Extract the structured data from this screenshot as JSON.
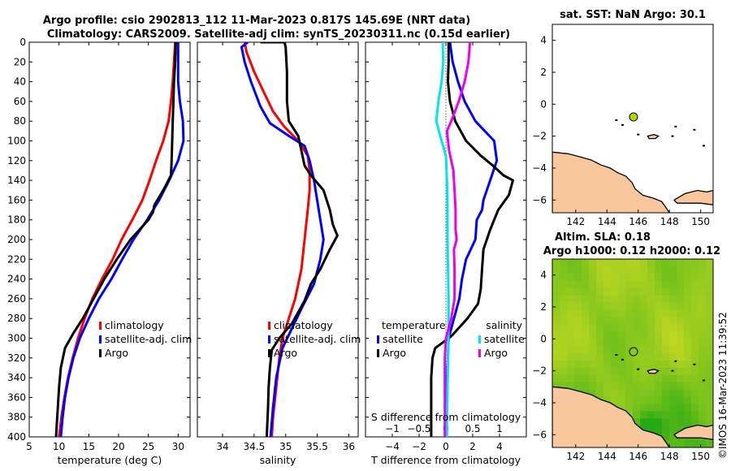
{
  "title_line1": "Argo profile: csio 2902813_112 11-Mar-2023 0.817S 145.69E (NRT data)",
  "title_line2": "Climatology: CARS2009. Satellite-adj clim: synTS_20230311.nc (0.15d earlier)",
  "copyright": "©IMOS 16-Mar-2023 11:39:52",
  "colors": {
    "climatology": "#ff0000",
    "satellite": "#0000ff",
    "argo": "#000000",
    "sal_satellite": "#00e5ee",
    "sal_argo": "#ee00ee",
    "land": "#f9c79d",
    "sst_bg": "#ffffff",
    "float_marker": "#aadd00"
  },
  "chart_data": [
    {
      "type": "line",
      "id": "temperature",
      "xlabel": "temperature (deg C)",
      "xlim": [
        5,
        32
      ],
      "ylim": [
        0,
        400
      ],
      "y_reversed": true,
      "xticks": [
        5,
        10,
        15,
        20,
        25,
        30
      ],
      "yticks": [
        0,
        20,
        40,
        60,
        80,
        100,
        120,
        140,
        160,
        180,
        200,
        220,
        240,
        260,
        280,
        300,
        320,
        340,
        360,
        380,
        400
      ],
      "legend": [
        "climatology",
        "satellite-adj. clim",
        "Argo"
      ],
      "series": [
        {
          "name": "climatology",
          "color": "climatology",
          "points": [
            [
              29.5,
              0
            ],
            [
              29.3,
              20
            ],
            [
              29.1,
              40
            ],
            [
              28.8,
              60
            ],
            [
              28.4,
              80
            ],
            [
              27.5,
              100
            ],
            [
              26.3,
              120
            ],
            [
              25.2,
              140
            ],
            [
              24,
              160
            ],
            [
              22.3,
              180
            ],
            [
              20.5,
              200
            ],
            [
              19,
              220
            ],
            [
              17.2,
              240
            ],
            [
              15.6,
              260
            ],
            [
              14.3,
              280
            ],
            [
              13.2,
              300
            ],
            [
              12.3,
              320
            ],
            [
              11.5,
              340
            ],
            [
              10.9,
              360
            ],
            [
              10.4,
              380
            ],
            [
              10,
              400
            ]
          ]
        },
        {
          "name": "satellite-adj. clim",
          "color": "satellite",
          "points": [
            [
              30,
              0
            ],
            [
              30,
              20
            ],
            [
              30,
              40
            ],
            [
              30.3,
              60
            ],
            [
              30.8,
              80
            ],
            [
              30.9,
              100
            ],
            [
              30,
              120
            ],
            [
              28.5,
              140
            ],
            [
              26.8,
              160
            ],
            [
              24.8,
              180
            ],
            [
              22.5,
              200
            ],
            [
              20.6,
              220
            ],
            [
              18.8,
              240
            ],
            [
              16.7,
              260
            ],
            [
              15,
              280
            ],
            [
              13.5,
              300
            ],
            [
              12.4,
              320
            ],
            [
              11.6,
              340
            ],
            [
              11,
              360
            ],
            [
              10.6,
              380
            ],
            [
              10.3,
              400
            ]
          ]
        },
        {
          "name": "Argo",
          "color": "argo",
          "points": [
            [
              29.6,
              0
            ],
            [
              29.5,
              20
            ],
            [
              29.3,
              40
            ],
            [
              29.2,
              60
            ],
            [
              29.1,
              80
            ],
            [
              29,
              100
            ],
            [
              28.9,
              120
            ],
            [
              28.8,
              135
            ],
            [
              27.5,
              150
            ],
            [
              26,
              165
            ],
            [
              25.8,
              172
            ],
            [
              25,
              180
            ],
            [
              22,
              200
            ],
            [
              19.7,
              220
            ],
            [
              17.6,
              240
            ],
            [
              15.8,
              260
            ],
            [
              14,
              280
            ],
            [
              12.4,
              295
            ],
            [
              11,
              310
            ],
            [
              10.3,
              330
            ],
            [
              10,
              350
            ],
            [
              9.8,
              370
            ],
            [
              9.6,
              390
            ],
            [
              9.5,
              400
            ]
          ]
        }
      ]
    },
    {
      "type": "line",
      "id": "salinity",
      "xlabel": "salinity",
      "xlim": [
        33.6,
        36.15
      ],
      "ylim": [
        0,
        400
      ],
      "y_reversed": true,
      "xticks": [
        34,
        34.5,
        35,
        35.5,
        36
      ],
      "legend": [
        "climatology",
        "satellite-adj. clim",
        "Argo"
      ],
      "series": [
        {
          "name": "climatology",
          "color": "climatology",
          "points": [
            [
              34.35,
              0
            ],
            [
              34.38,
              10
            ],
            [
              34.5,
              30
            ],
            [
              34.65,
              50
            ],
            [
              34.8,
              70
            ],
            [
              34.97,
              85
            ],
            [
              35.2,
              100
            ],
            [
              35.35,
              115
            ],
            [
              35.38,
              130
            ],
            [
              35.38,
              150
            ],
            [
              35.35,
              170
            ],
            [
              35.3,
              200
            ],
            [
              35.25,
              230
            ],
            [
              35.15,
              260
            ],
            [
              35.05,
              280
            ],
            [
              34.95,
              300
            ],
            [
              34.9,
              320
            ],
            [
              34.85,
              350
            ],
            [
              34.8,
              380
            ],
            [
              34.78,
              400
            ]
          ]
        },
        {
          "name": "satellite-adj. clim",
          "color": "satellite",
          "points": [
            [
              34.4,
              0
            ],
            [
              34.3,
              5
            ],
            [
              34.35,
              20
            ],
            [
              34.45,
              40
            ],
            [
              34.6,
              65
            ],
            [
              34.75,
              82
            ],
            [
              35.05,
              95
            ],
            [
              35.3,
              105
            ],
            [
              35.38,
              120
            ],
            [
              35.45,
              140
            ],
            [
              35.5,
              160
            ],
            [
              35.55,
              180
            ],
            [
              35.6,
              200
            ],
            [
              35.55,
              220
            ],
            [
              35.45,
              245
            ],
            [
              35.25,
              270
            ],
            [
              35.1,
              290
            ],
            [
              34.95,
              310
            ],
            [
              34.85,
              340
            ],
            [
              34.8,
              370
            ],
            [
              34.76,
              400
            ]
          ]
        },
        {
          "name": "Argo",
          "color": "argo",
          "points": [
            [
              34.6,
              0
            ],
            [
              34.98,
              0
            ],
            [
              35.0,
              5
            ],
            [
              35.02,
              30
            ],
            [
              35.02,
              60
            ],
            [
              35.05,
              80
            ],
            [
              35.2,
              95
            ],
            [
              35.25,
              110
            ],
            [
              35.3,
              125
            ],
            [
              35.4,
              135
            ],
            [
              35.6,
              150
            ],
            [
              35.7,
              170
            ],
            [
              35.75,
              185
            ],
            [
              35.82,
              196
            ],
            [
              35.7,
              210
            ],
            [
              35.55,
              230
            ],
            [
              35.4,
              245
            ],
            [
              35.3,
              262
            ],
            [
              35.1,
              285
            ],
            [
              34.9,
              300
            ],
            [
              34.78,
              312
            ],
            [
              34.75,
              330
            ],
            [
              34.73,
              350
            ],
            [
              34.72,
              370
            ],
            [
              34.7,
              400
            ]
          ]
        }
      ]
    },
    {
      "type": "line",
      "id": "difference",
      "xlabel": "T difference from climatology",
      "xlabel_top": "S difference from climatology",
      "xlim": [
        -6,
        6
      ],
      "ylim": [
        0,
        400
      ],
      "y_reversed": true,
      "xticks": [
        -4,
        -2,
        0,
        2,
        4
      ],
      "xticks_top": [
        -1,
        -0.5,
        0,
        0.5,
        1
      ],
      "legend_left_title": "temperature",
      "legend_right_title": "salinity",
      "legend_left": [
        "satellite",
        "Argo"
      ],
      "legend_right": [
        "satellite",
        "Argo"
      ],
      "series": [
        {
          "name": "T satellite",
          "color": "satellite",
          "points": [
            [
              0.3,
              0
            ],
            [
              0.5,
              20
            ],
            [
              0.9,
              40
            ],
            [
              1.4,
              60
            ],
            [
              2.2,
              80
            ],
            [
              3.6,
              100
            ],
            [
              3.8,
              120
            ],
            [
              3.3,
              140
            ],
            [
              2.8,
              160
            ],
            [
              2.7,
              170
            ],
            [
              2.3,
              180
            ],
            [
              2.2,
              200
            ],
            [
              1.5,
              220
            ],
            [
              1.2,
              240
            ],
            [
              1.0,
              260
            ],
            [
              0.6,
              280
            ],
            [
              0.2,
              300
            ],
            [
              0.15,
              320
            ],
            [
              0.1,
              340
            ],
            [
              0.1,
              360
            ],
            [
              0.05,
              380
            ],
            [
              0.0,
              400
            ]
          ]
        },
        {
          "name": "T Argo",
          "color": "argo",
          "points": [
            [
              0.2,
              0
            ],
            [
              0.2,
              20
            ],
            [
              0.15,
              40
            ],
            [
              0.3,
              60
            ],
            [
              0.7,
              80
            ],
            [
              1.5,
              100
            ],
            [
              2.6,
              115
            ],
            [
              3.5,
              125
            ],
            [
              4.3,
              135
            ],
            [
              5.0,
              140
            ],
            [
              4.7,
              155
            ],
            [
              3.9,
              170
            ],
            [
              3.3,
              190
            ],
            [
              2.8,
              210
            ],
            [
              2.7,
              230
            ],
            [
              2.6,
              250
            ],
            [
              2.4,
              265
            ],
            [
              1.6,
              280
            ],
            [
              0.4,
              298
            ],
            [
              -0.8,
              310
            ],
            [
              -1.0,
              320
            ],
            [
              -1.1,
              340
            ],
            [
              -1.1,
              360
            ],
            [
              -1.1,
              380
            ],
            [
              -1.1,
              400
            ]
          ]
        },
        {
          "name": "S satellite",
          "color": "sal_satellite",
          "points": [
            [
              -0.06,
              0
            ],
            [
              -0.05,
              20
            ],
            [
              -0.08,
              40
            ],
            [
              -0.14,
              60
            ],
            [
              -0.18,
              80
            ],
            [
              -0.08,
              100
            ],
            [
              0.0,
              115
            ],
            [
              0.02,
              140
            ],
            [
              0.03,
              170
            ],
            [
              0.03,
              200
            ],
            [
              0.04,
              230
            ],
            [
              0.05,
              260
            ],
            [
              0.05,
              290
            ],
            [
              0.04,
              320
            ],
            [
              0.03,
              350
            ],
            [
              0.02,
              380
            ],
            [
              0.02,
              400
            ]
          ]
        },
        {
          "name": "S Argo",
          "color": "sal_argo",
          "points": [
            [
              0.45,
              0
            ],
            [
              0.42,
              20
            ],
            [
              0.35,
              40
            ],
            [
              0.24,
              60
            ],
            [
              0.1,
              80
            ],
            [
              0.02,
              90
            ],
            [
              0.06,
              110
            ],
            [
              0.14,
              130
            ],
            [
              0.16,
              150
            ],
            [
              0.18,
              170
            ],
            [
              0.18,
              190
            ],
            [
              0.2,
              200
            ],
            [
              0.15,
              210
            ],
            [
              0.16,
              230
            ],
            [
              0.16,
              260
            ],
            [
              0.1,
              280
            ],
            [
              0.0,
              300
            ],
            [
              -0.02,
              320
            ],
            [
              -0.02,
              360
            ],
            [
              -0.02,
              400
            ]
          ]
        }
      ]
    },
    {
      "type": "map",
      "id": "sst_map",
      "title": "sat. SST: NaN Argo: 30.1",
      "xlim": [
        140.5,
        150.8
      ],
      "ylim": [
        -6.8,
        5
      ],
      "xticks": [
        142,
        144,
        146,
        148,
        150
      ],
      "yticks": [
        -6,
        -4,
        -2,
        0,
        2,
        4
      ],
      "float_position": [
        145.7,
        -0.8
      ]
    },
    {
      "type": "heatmap",
      "id": "sla_map",
      "title_line1": "Altim. SLA: 0.18",
      "title_line2": "Argo h1000: 0.12 h2000: 0.12",
      "xlim": [
        140.5,
        150.8
      ],
      "ylim": [
        -6.8,
        5
      ],
      "xticks": [
        142,
        144,
        146,
        148,
        150
      ],
      "yticks": [
        -6,
        -4,
        -2,
        0,
        2,
        4
      ],
      "float_position": [
        145.7,
        -0.8
      ]
    }
  ]
}
